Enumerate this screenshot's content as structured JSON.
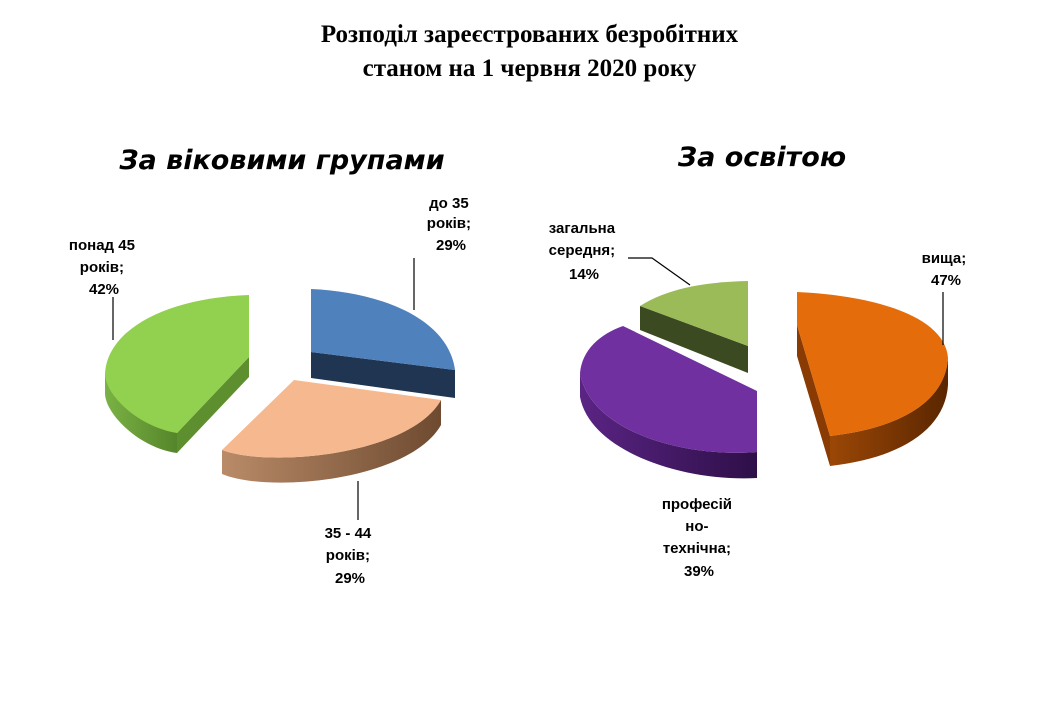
{
  "title": {
    "line1": "Розподіл зареєстрованих безробітних",
    "line2": "станом на 1 червня 2020 року"
  },
  "colors": {
    "age_under35": "#4f81bd",
    "age_35_44": "#f6b98f",
    "age_over45": "#92d050",
    "edu_higher": "#e46c0a",
    "edu_professional": "#7030a0",
    "edu_general": "#9bbb59"
  },
  "chart_data": [
    {
      "type": "pie",
      "title": "За віковими групами",
      "slices": [
        {
          "label_lines": [
            "до 35",
            "років;",
            "29%"
          ],
          "value": 29
        },
        {
          "label_lines": [
            "35 - 44",
            "років;",
            "29%"
          ],
          "value": 29
        },
        {
          "label_lines": [
            "понад 45",
            "років;",
            "42%"
          ],
          "value": 42
        }
      ]
    },
    {
      "type": "pie",
      "title": "За освітою",
      "slices": [
        {
          "label_lines": [
            "вища;",
            "47%"
          ],
          "value": 47
        },
        {
          "label_lines": [
            "професій",
            "но-",
            "технічна;",
            "39%"
          ],
          "value": 39
        },
        {
          "label_lines": [
            "загальна",
            "середня;",
            "14%"
          ],
          "value": 14
        }
      ]
    }
  ]
}
